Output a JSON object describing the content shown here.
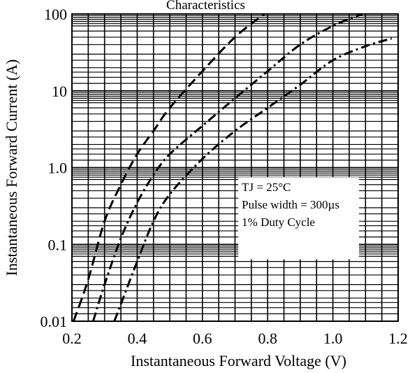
{
  "chart_data": {
    "type": "line",
    "title": "Characteristics",
    "xlabel": "Instantaneous Forward Voltage (V)",
    "ylabel": "Instantaneous Forward Current (A)",
    "xlim": [
      0.2,
      1.2
    ],
    "ylim": [
      0.01,
      100
    ],
    "yscale": "log",
    "grid": true,
    "x_ticks": [
      "0.2",
      "0.4",
      "0.6",
      "0.8",
      "1.0",
      "1.2"
    ],
    "y_ticks": [
      "0.01",
      "0.1",
      "1.0",
      "10",
      "100"
    ],
    "annotation": [
      "TJ = 25°C",
      "Pulse width = 300µs",
      "1% Duty Cycle"
    ],
    "series": [
      {
        "style": "dashed",
        "points": [
          [
            0.205,
            0.01
          ],
          [
            0.25,
            0.035
          ],
          [
            0.3,
            0.2
          ],
          [
            0.35,
            0.6
          ],
          [
            0.4,
            1.5
          ],
          [
            0.45,
            3
          ],
          [
            0.5,
            6
          ],
          [
            0.6,
            18
          ],
          [
            0.7,
            50
          ],
          [
            0.79,
            100
          ]
        ]
      },
      {
        "style": "dash-dot",
        "points": [
          [
            0.265,
            0.01
          ],
          [
            0.3,
            0.03
          ],
          [
            0.35,
            0.12
          ],
          [
            0.4,
            0.35
          ],
          [
            0.45,
            0.8
          ],
          [
            0.5,
            1.5
          ],
          [
            0.6,
            3.5
          ],
          [
            0.7,
            8
          ],
          [
            0.8,
            18
          ],
          [
            0.9,
            40
          ],
          [
            1.0,
            70
          ],
          [
            1.09,
            100
          ]
        ]
      },
      {
        "style": "dash-dot",
        "points": [
          [
            0.33,
            0.01
          ],
          [
            0.4,
            0.06
          ],
          [
            0.45,
            0.2
          ],
          [
            0.5,
            0.45
          ],
          [
            0.6,
            1.3
          ],
          [
            0.7,
            3
          ],
          [
            0.8,
            6
          ],
          [
            0.9,
            12
          ],
          [
            1.0,
            25
          ],
          [
            1.1,
            38
          ],
          [
            1.18,
            48
          ]
        ]
      }
    ]
  }
}
